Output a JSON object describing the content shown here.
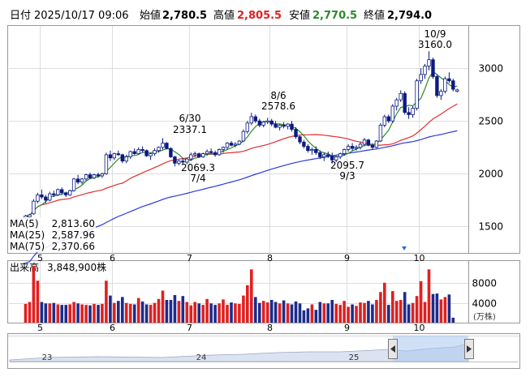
{
  "header": {
    "date_label": "日付",
    "date_value": "2025/10/17 09:06",
    "open_label": "始値",
    "open_value": "2,780.5",
    "high_label": "高値",
    "high_value": "2,805.5",
    "low_label": "安値",
    "low_value": "2,770.5",
    "close_label": "終値",
    "close_value": "2,794.0"
  },
  "ma_legend": [
    {
      "label": "MA(5)",
      "value": "2,813.60",
      "color": "#2e8b2e"
    },
    {
      "label": "MA(25)",
      "value": "2,587.96",
      "color": "#e03030"
    },
    {
      "label": "MA(75)",
      "value": "2,370.66",
      "color": "#2a3ad8"
    }
  ],
  "volume_label": "出来高",
  "volume_value": "3,848,900株",
  "volume_unit": "(万株)",
  "navigator_labels": [
    "23",
    "24",
    "25"
  ],
  "colors": {
    "up": "#ffffff",
    "down": "#0c1a80",
    "volume_up": "#e02020",
    "volume_down": "#1c2c8c",
    "marker": "#2f6fd6"
  },
  "chart_data": [
    {
      "type": "candlestick",
      "title": "",
      "x_tick_labels": [
        "5",
        "6",
        "7",
        "8",
        "9",
        "10"
      ],
      "y_ticks": [
        1500,
        2000,
        2500,
        3000
      ],
      "ylim": [
        1250,
        3400
      ],
      "annotations": [
        {
          "date": "6/30",
          "value": "2337.1",
          "kind": "high"
        },
        {
          "date": "7/4",
          "value": "2069.3",
          "kind": "low"
        },
        {
          "date": "8/6",
          "value": "2578.6",
          "kind": "high"
        },
        {
          "date": "9/3",
          "value": "2095.7",
          "kind": "low"
        },
        {
          "date": "10/9",
          "value": "3160.0",
          "kind": "high"
        }
      ],
      "candles": [
        [
          1580,
          1610,
          1570,
          1600
        ],
        [
          1590,
          1620,
          1580,
          1610
        ],
        [
          1620,
          1760,
          1610,
          1740
        ],
        [
          1740,
          1820,
          1720,
          1800
        ],
        [
          1800,
          1850,
          1760,
          1780
        ],
        [
          1780,
          1800,
          1720,
          1750
        ],
        [
          1750,
          1830,
          1740,
          1810
        ],
        [
          1810,
          1840,
          1780,
          1800
        ],
        [
          1800,
          1860,
          1790,
          1850
        ],
        [
          1850,
          1870,
          1800,
          1820
        ],
        [
          1820,
          1830,
          1780,
          1800
        ],
        [
          1800,
          1850,
          1790,
          1840
        ],
        [
          1840,
          1960,
          1830,
          1950
        ],
        [
          1950,
          1990,
          1900,
          1920
        ],
        [
          1920,
          1960,
          1900,
          1950
        ],
        [
          1950,
          2000,
          1930,
          1990
        ],
        [
          1990,
          2010,
          1950,
          1960
        ],
        [
          1960,
          2000,
          1950,
          1990
        ],
        [
          1990,
          2010,
          1960,
          1980
        ],
        [
          1980,
          2010,
          1960,
          2000
        ],
        [
          2000,
          2200,
          1990,
          2180
        ],
        [
          2180,
          2220,
          2120,
          2150
        ],
        [
          2150,
          2200,
          2130,
          2190
        ],
        [
          2190,
          2220,
          2170,
          2180
        ],
        [
          2180,
          2190,
          2100,
          2120
        ],
        [
          2120,
          2180,
          2100,
          2160
        ],
        [
          2160,
          2220,
          2140,
          2210
        ],
        [
          2210,
          2240,
          2180,
          2190
        ],
        [
          2190,
          2250,
          2180,
          2230
        ],
        [
          2230,
          2260,
          2200,
          2220
        ],
        [
          2220,
          2230,
          2160,
          2170
        ],
        [
          2170,
          2200,
          2130,
          2190
        ],
        [
          2190,
          2240,
          2170,
          2220
        ],
        [
          2220,
          2260,
          2200,
          2250
        ],
        [
          2250,
          2337,
          2230,
          2290
        ],
        [
          2290,
          2300,
          2230,
          2240
        ],
        [
          2240,
          2250,
          2150,
          2160
        ],
        [
          2160,
          2170,
          2069,
          2100
        ],
        [
          2100,
          2130,
          2080,
          2120
        ],
        [
          2120,
          2150,
          2090,
          2110
        ],
        [
          2110,
          2150,
          2090,
          2140
        ],
        [
          2140,
          2200,
          2120,
          2180
        ],
        [
          2180,
          2210,
          2160,
          2190
        ],
        [
          2190,
          2200,
          2150,
          2160
        ],
        [
          2160,
          2200,
          2150,
          2190
        ],
        [
          2190,
          2230,
          2170,
          2210
        ],
        [
          2210,
          2240,
          2190,
          2200
        ],
        [
          2200,
          2220,
          2160,
          2180
        ],
        [
          2180,
          2240,
          2170,
          2230
        ],
        [
          2230,
          2260,
          2200,
          2250
        ],
        [
          2250,
          2300,
          2230,
          2290
        ],
        [
          2290,
          2310,
          2260,
          2270
        ],
        [
          2270,
          2300,
          2250,
          2280
        ],
        [
          2280,
          2320,
          2270,
          2310
        ],
        [
          2310,
          2420,
          2300,
          2400
        ],
        [
          2400,
          2500,
          2380,
          2480
        ],
        [
          2480,
          2578,
          2460,
          2540
        ],
        [
          2540,
          2560,
          2480,
          2500
        ],
        [
          2500,
          2520,
          2440,
          2460
        ],
        [
          2460,
          2500,
          2440,
          2490
        ],
        [
          2490,
          2530,
          2470,
          2500
        ],
        [
          2500,
          2520,
          2450,
          2470
        ],
        [
          2470,
          2500,
          2430,
          2440
        ],
        [
          2440,
          2470,
          2410,
          2460
        ],
        [
          2460,
          2490,
          2430,
          2450
        ],
        [
          2450,
          2480,
          2420,
          2470
        ],
        [
          2470,
          2500,
          2400,
          2420
        ],
        [
          2420,
          2440,
          2330,
          2350
        ],
        [
          2350,
          2360,
          2280,
          2300
        ],
        [
          2300,
          2320,
          2240,
          2260
        ],
        [
          2260,
          2280,
          2200,
          2220
        ],
        [
          2220,
          2250,
          2180,
          2230
        ],
        [
          2230,
          2260,
          2180,
          2200
        ],
        [
          2200,
          2220,
          2140,
          2160
        ],
        [
          2160,
          2200,
          2120,
          2180
        ],
        [
          2180,
          2210,
          2150,
          2170
        ],
        [
          2170,
          2200,
          2096,
          2130
        ],
        [
          2130,
          2170,
          2110,
          2160
        ],
        [
          2160,
          2200,
          2140,
          2190
        ],
        [
          2190,
          2240,
          2170,
          2230
        ],
        [
          2230,
          2280,
          2210,
          2260
        ],
        [
          2260,
          2290,
          2220,
          2240
        ],
        [
          2240,
          2270,
          2220,
          2250
        ],
        [
          2250,
          2300,
          2230,
          2280
        ],
        [
          2280,
          2340,
          2260,
          2320
        ],
        [
          2320,
          2330,
          2260,
          2270
        ],
        [
          2270,
          2290,
          2230,
          2250
        ],
        [
          2250,
          2320,
          2240,
          2310
        ],
        [
          2310,
          2480,
          2300,
          2460
        ],
        [
          2460,
          2560,
          2440,
          2540
        ],
        [
          2540,
          2560,
          2480,
          2500
        ],
        [
          2500,
          2660,
          2480,
          2640
        ],
        [
          2640,
          2720,
          2600,
          2700
        ],
        [
          2700,
          2790,
          2680,
          2760
        ],
        [
          2760,
          2780,
          2560,
          2580
        ],
        [
          2580,
          2630,
          2520,
          2560
        ],
        [
          2560,
          2640,
          2530,
          2620
        ],
        [
          2620,
          2900,
          2600,
          2880
        ],
        [
          2880,
          3000,
          2850,
          2940
        ],
        [
          2940,
          3040,
          2900,
          3020
        ],
        [
          3020,
          3160,
          2980,
          3080
        ],
        [
          3080,
          3100,
          2900,
          2920
        ],
        [
          2920,
          2940,
          2720,
          2740
        ],
        [
          2740,
          2800,
          2700,
          2780
        ],
        [
          2780,
          2920,
          2760,
          2900
        ],
        [
          2900,
          2960,
          2860,
          2880
        ],
        [
          2880,
          2900,
          2780,
          2800
        ],
        [
          2780,
          2806,
          2770,
          2794
        ]
      ],
      "ma_series": [
        {
          "name": "MA(5)",
          "period": 5
        },
        {
          "name": "MA(25)",
          "period": 25
        },
        {
          "name": "MA(75)",
          "period": 75
        }
      ]
    },
    {
      "type": "bar",
      "title": "",
      "y_ticks": [
        4000,
        8000
      ],
      "ylim": [
        0,
        12500
      ],
      "unit": "万株",
      "volumes": [
        3800,
        4200,
        11500,
        8500,
        4200,
        3900,
        3900,
        4000,
        3700,
        3600,
        3600,
        3700,
        4200,
        3900,
        3700,
        3600,
        3500,
        3800,
        3600,
        3800,
        8500,
        5500,
        4000,
        4400,
        5200,
        4000,
        3800,
        3700,
        5000,
        4300,
        3700,
        3600,
        4000,
        4800,
        6500,
        4600,
        4600,
        5600,
        4400,
        5400,
        4200,
        3500,
        4200,
        3900,
        3600,
        4800,
        3900,
        3600,
        3900,
        4700,
        3600,
        4100,
        3900,
        3800,
        5500,
        7600,
        10800,
        5200,
        4000,
        4400,
        4100,
        4600,
        4200,
        3900,
        4500,
        3900,
        3700,
        4300,
        3900,
        2500,
        2900,
        3700,
        2600,
        4200,
        3900,
        3900,
        4600,
        3800,
        3600,
        4400,
        3200,
        3700,
        3400,
        4100,
        4000,
        4400,
        3700,
        4600,
        6200,
        8100,
        3600,
        6400,
        4400,
        4600,
        6200,
        3700,
        4000,
        5400,
        8400,
        4200,
        10800,
        5800,
        5900,
        4700,
        5200,
        5700,
        1000
      ]
    }
  ]
}
